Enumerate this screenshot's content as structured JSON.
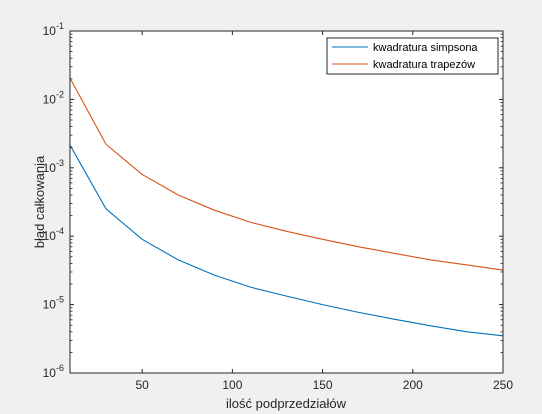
{
  "chart_data": {
    "type": "line",
    "xlabel": "ilość podprzedziałów",
    "ylabel": "błąd całkowania",
    "xlim": [
      10,
      250
    ],
    "ylim_log10": [
      -6,
      -1
    ],
    "yscale": "log",
    "grid": false,
    "legend_position": "top-right",
    "x_ticks": [
      50,
      100,
      150,
      200,
      250
    ],
    "x_tick_labels": [
      "50",
      "100",
      "150",
      "200",
      "250"
    ],
    "y_ticks_log10": [
      -6,
      -5,
      -4,
      -3,
      -2,
      -1
    ],
    "y_tick_labels": [
      "-6",
      "-5",
      "-4",
      "-3",
      "-2",
      "-1"
    ],
    "y_tick_base": "10",
    "series": [
      {
        "name": "kwadratura simpsona",
        "color": "#0072bd",
        "x": [
          10,
          30,
          50,
          70,
          90,
          110,
          130,
          150,
          170,
          190,
          210,
          230,
          250
        ],
        "y": [
          0.00215,
          0.00025,
          9e-05,
          4.5e-05,
          2.7e-05,
          1.8e-05,
          1.33e-05,
          1e-05,
          7.7e-06,
          6.1e-06,
          4.9e-06,
          4e-06,
          3.5e-06
        ]
      },
      {
        "name": "kwadratura trapezów",
        "color": "#d95319",
        "x": [
          10,
          30,
          50,
          70,
          90,
          110,
          130,
          150,
          170,
          190,
          210,
          230,
          250
        ],
        "y": [
          0.0205,
          0.0022,
          0.0008,
          0.0004,
          0.00024,
          0.00016,
          0.000118,
          9e-05,
          7e-05,
          5.6e-05,
          4.5e-05,
          3.8e-05,
          3.2e-05
        ]
      }
    ]
  }
}
